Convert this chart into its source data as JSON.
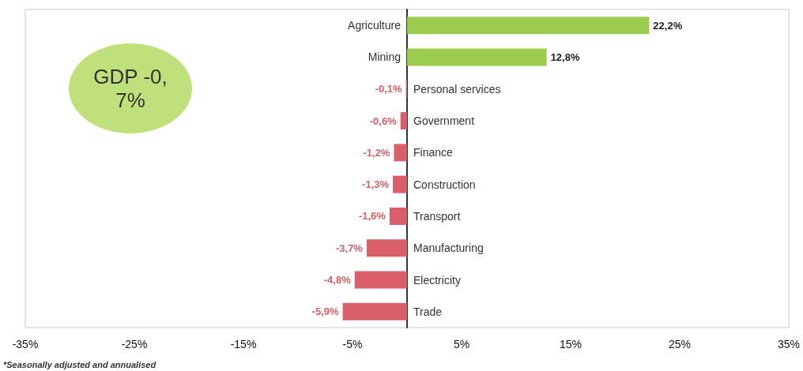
{
  "chart_data": {
    "type": "bar",
    "orientation": "horizontal",
    "categories": [
      "Agriculture",
      "Mining",
      "Personal services",
      "Government",
      "Finance",
      "Construction",
      "Transport",
      "Manufacturing",
      "Electricity",
      "Trade"
    ],
    "values": [
      22.2,
      12.8,
      -0.1,
      -0.6,
      -1.2,
      -1.3,
      -1.6,
      -3.7,
      -4.8,
      -5.9
    ],
    "value_labels": [
      "22,2%",
      "12,8%",
      "-0,1%",
      "-0,6%",
      "-1,2%",
      "-1,3%",
      "-1,6%",
      "-3,7%",
      "-4,8%",
      "-5,9%"
    ],
    "colors": [
      "#9ccc4f",
      "#9ccc4f",
      "#d9606a",
      "#d9606a",
      "#d9606a",
      "#d9606a",
      "#d9606a",
      "#d9606a",
      "#d9606a",
      "#d9606a"
    ],
    "xlim": [
      -35,
      35
    ],
    "xticks": [
      {
        "value": -35,
        "label": "-35%"
      },
      {
        "value": -25,
        "label": "-25%"
      },
      {
        "value": -15,
        "label": "-15%"
      },
      {
        "value": -5,
        "label": "-5%"
      },
      {
        "value": 5,
        "label": "5%"
      },
      {
        "value": 15,
        "label": "15%"
      },
      {
        "value": 25,
        "label": "25%"
      },
      {
        "value": 35,
        "label": "35%"
      }
    ],
    "grid": false,
    "annotations": [
      "GDP -0,7%",
      "*Seasonally adjusted and annualised"
    ]
  }
}
